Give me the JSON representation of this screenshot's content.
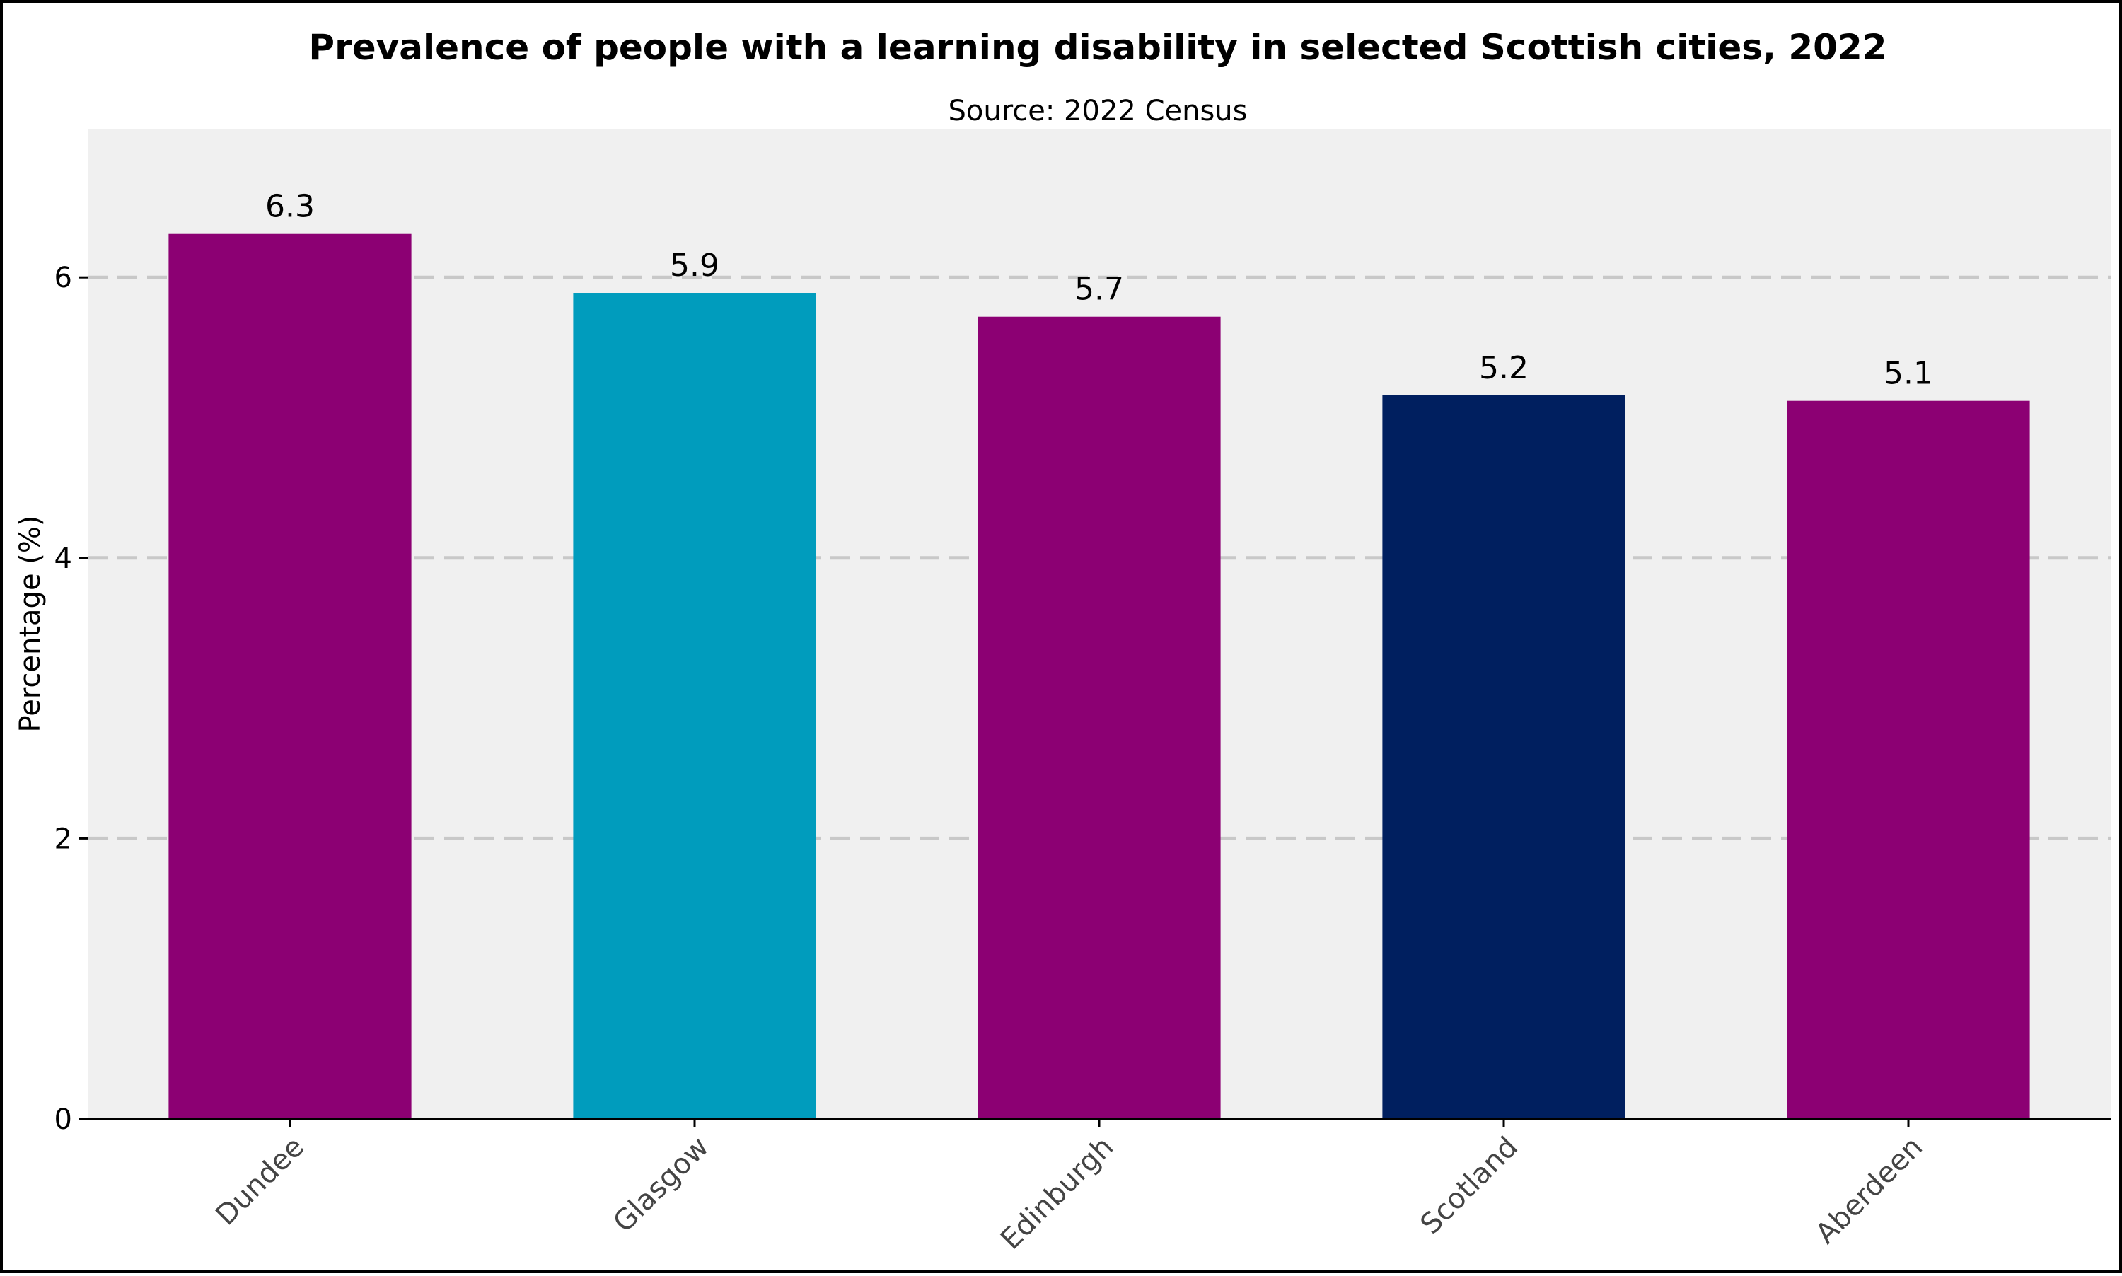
{
  "chart_data": {
    "type": "bar",
    "title": "Prevalence of people with a learning disability in selected Scottish cities, 2022",
    "subtitle": "Source: 2022 Census",
    "xlabel": "",
    "ylabel": "Percentage (%)",
    "categories": [
      "Dundee",
      "Glasgow",
      "Edinburgh",
      "Scotland",
      "Aberdeen"
    ],
    "values": [
      6.31,
      5.89,
      5.72,
      5.16,
      5.12
    ],
    "value_labels": [
      "6.3",
      "5.9",
      "5.7",
      "5.2",
      "5.1"
    ],
    "bar_colors": [
      "#8c0073",
      "#009cbd",
      "#8c0073",
      "#001f5f",
      "#8c0073"
    ],
    "ylim": [
      0,
      7.06
    ],
    "yticks": [
      0,
      2,
      4,
      6
    ],
    "ytick_labels": [
      "0",
      "2",
      "4",
      "6"
    ],
    "grid": true,
    "grid_color": "#c8c8c8",
    "plot_background": "#f0f0f0"
  }
}
